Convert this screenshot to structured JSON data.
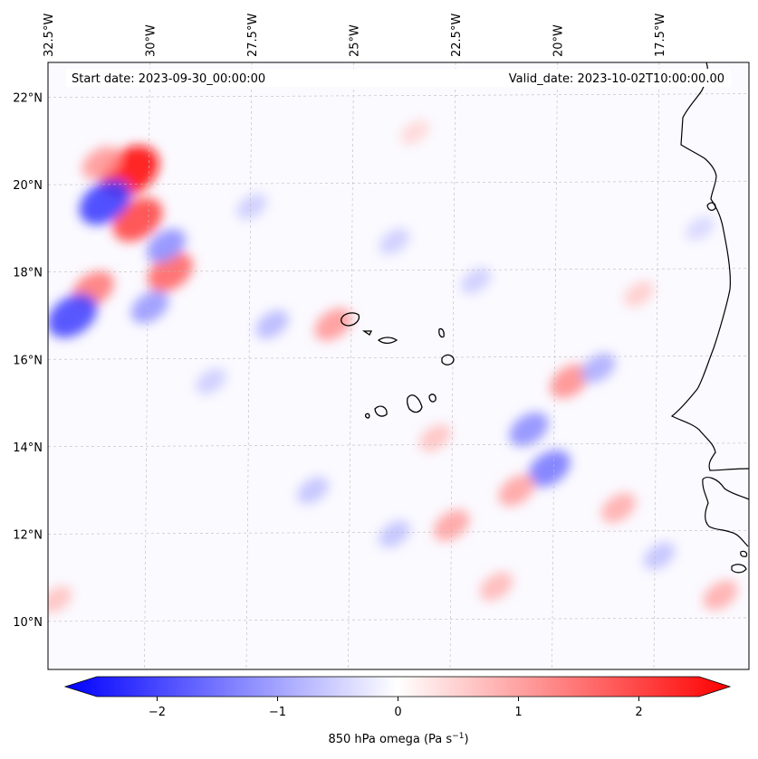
{
  "chart_data": {
    "type": "heatmap",
    "title": "",
    "start_date": "Start date: 2023-09-30_00:00:00",
    "valid_date": "Valid_date: 2023-10-02T10:00:00.00",
    "x_axis": {
      "ticks": [
        {
          "value": -32.5,
          "label": "32.5°W"
        },
        {
          "value": -30.0,
          "label": "30°W"
        },
        {
          "value": -27.5,
          "label": "27.5°W"
        },
        {
          "value": -25.0,
          "label": "25°W"
        },
        {
          "value": -22.5,
          "label": "22.5°W"
        },
        {
          "value": -20.0,
          "label": "20°W"
        },
        {
          "value": -17.5,
          "label": "17.5°W"
        }
      ],
      "range": [
        -32.5,
        -15.3
      ]
    },
    "y_axis": {
      "ticks": [
        {
          "value": 10,
          "label": "10°N"
        },
        {
          "value": 12,
          "label": "12°N"
        },
        {
          "value": 14,
          "label": "14°N"
        },
        {
          "value": 16,
          "label": "16°N"
        },
        {
          "value": 18,
          "label": "18°N"
        },
        {
          "value": 20,
          "label": "20°N"
        },
        {
          "value": 22,
          "label": "22°N"
        }
      ],
      "range": [
        8.9,
        22.8
      ]
    },
    "gridlines": true,
    "colormap": "bwr",
    "colors": {
      "min": "#0000ff",
      "mid": "#ffffff",
      "max": "#ff0000",
      "coast": "#000000"
    },
    "colorbar": {
      "label": "850 hPa omega (Pa s",
      "label_sup": "−1",
      "label_tail": ")",
      "vmin": -2.5,
      "vmax": 2.5,
      "ticks": [
        {
          "value": -2,
          "label": "−2"
        },
        {
          "value": -1,
          "label": "−1"
        },
        {
          "value": 0,
          "label": "0"
        },
        {
          "value": 1,
          "label": "1"
        },
        {
          "value": 2,
          "label": "2"
        }
      ],
      "extend": "both"
    },
    "features": [
      {
        "lon": -30.5,
        "lat": 20.3,
        "value": 2.4
      },
      {
        "lon": -30.3,
        "lat": 19.2,
        "value": 1.8
      },
      {
        "lon": -31.1,
        "lat": 19.6,
        "value": -1.9
      },
      {
        "lon": -29.5,
        "lat": 18.0,
        "value": 1.5
      },
      {
        "lon": -31.4,
        "lat": 17.6,
        "value": 1.3
      },
      {
        "lon": -31.9,
        "lat": 17.0,
        "value": -1.8
      },
      {
        "lon": -30.0,
        "lat": 17.2,
        "value": -1.0
      },
      {
        "lon": -29.6,
        "lat": 18.6,
        "value": -1.1
      },
      {
        "lon": -31.2,
        "lat": 20.5,
        "value": 1.0
      },
      {
        "lon": -27.0,
        "lat": 16.8,
        "value": -0.7
      },
      {
        "lon": -25.5,
        "lat": 16.8,
        "value": 1.0
      },
      {
        "lon": -19.7,
        "lat": 15.5,
        "value": 1.1
      },
      {
        "lon": -20.7,
        "lat": 14.4,
        "value": -1.1
      },
      {
        "lon": -20.2,
        "lat": 13.5,
        "value": -1.3
      },
      {
        "lon": -21.0,
        "lat": 13.0,
        "value": 0.9
      },
      {
        "lon": -22.6,
        "lat": 12.2,
        "value": 0.9
      },
      {
        "lon": -23.0,
        "lat": 14.2,
        "value": 0.6
      },
      {
        "lon": -18.5,
        "lat": 12.6,
        "value": 0.8
      },
      {
        "lon": -16.0,
        "lat": 10.6,
        "value": 0.8
      },
      {
        "lon": -19.0,
        "lat": 15.8,
        "value": -0.8
      },
      {
        "lon": -24.0,
        "lat": 12.0,
        "value": -0.6
      },
      {
        "lon": -26.0,
        "lat": 13.0,
        "value": -0.6
      },
      {
        "lon": -21.5,
        "lat": 10.8,
        "value": 0.7
      },
      {
        "lon": -17.5,
        "lat": 11.5,
        "value": -0.6
      },
      {
        "lon": -27.5,
        "lat": 19.5,
        "value": -0.5
      },
      {
        "lon": -24.0,
        "lat": 18.7,
        "value": -0.5
      },
      {
        "lon": -22.0,
        "lat": 17.8,
        "value": -0.5
      },
      {
        "lon": -28.5,
        "lat": 15.5,
        "value": -0.5
      },
      {
        "lon": -32.3,
        "lat": 10.5,
        "value": 0.6
      },
      {
        "lon": -23.5,
        "lat": 21.2,
        "value": 0.4
      },
      {
        "lon": -18.0,
        "lat": 17.5,
        "value": 0.5
      },
      {
        "lon": -16.5,
        "lat": 19.0,
        "value": -0.4
      }
    ]
  }
}
